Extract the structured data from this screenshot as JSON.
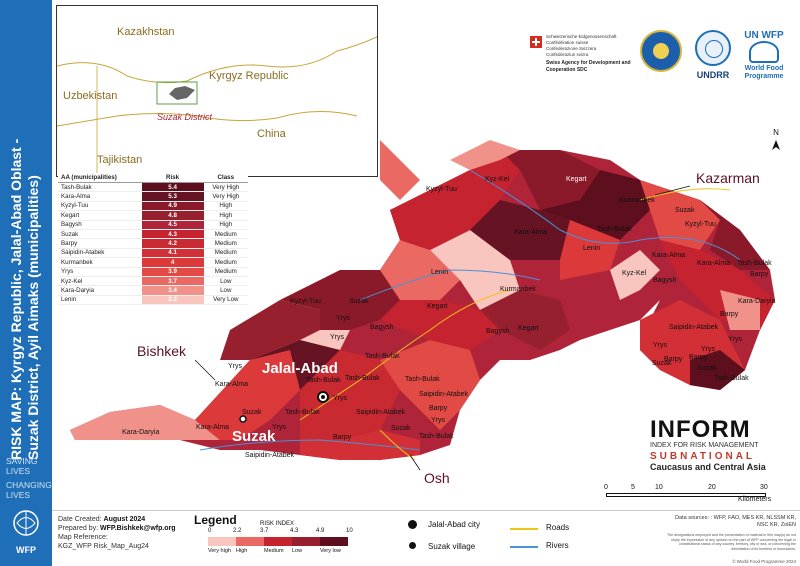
{
  "title": {
    "main": "RISK MAP: Kyrgyz Republic, Jalal-Abad Oblast -",
    "sub": "Suzak District, Ayil Aimaks (municipalities)"
  },
  "sidebar": {
    "slogan_1": "SAVING\nLIVES",
    "slogan_2": "CHANGING\nLIVES",
    "logo_text": "WFP"
  },
  "inset": {
    "countries": [
      "Kazakhstan",
      "Kyrgyz Republic",
      "Uzbekistan",
      "China",
      "Tajikistan"
    ],
    "district_label": "Suzak District"
  },
  "logos": {
    "swiss_lines": "Schweizerische Eidgenossenschaft\nConfédération suisse\nConfederazione Svizzera\nConfederaziun svizra",
    "agency": "Swiss Agency for Development and Cooperation SDC",
    "undrr": "UNDRR",
    "un_wfp_top": "UN WFP",
    "un_wfp_bottom": "World Food Programme"
  },
  "table": {
    "headers": [
      "AA (municipalities)",
      "Risk",
      "Class"
    ],
    "rows": [
      {
        "name": "Tash-Bulak",
        "risk": "5.4",
        "class": "Very High",
        "color": "#5e0f1e"
      },
      {
        "name": "Kara-Alma",
        "risk": "5.3",
        "class": "Very High",
        "color": "#661424"
      },
      {
        "name": "Kyzyl-Tuu",
        "risk": "4.9",
        "class": "High",
        "color": "#8a1a2a"
      },
      {
        "name": "Kegart",
        "risk": "4.8",
        "class": "High",
        "color": "#96202e"
      },
      {
        "name": "Bagysh",
        "risk": "4.5",
        "class": "High",
        "color": "#b0243a"
      },
      {
        "name": "Suzak",
        "risk": "4.3",
        "class": "Medium",
        "color": "#c4232f"
      },
      {
        "name": "Barpy",
        "risk": "4.2",
        "class": "Medium",
        "color": "#c92a32"
      },
      {
        "name": "Saipidin-Atabek",
        "risk": "4.1",
        "class": "Medium",
        "color": "#d22f36"
      },
      {
        "name": "Kurmanbek",
        "risk": "4",
        "class": "Medium",
        "color": "#dc3a3a"
      },
      {
        "name": "Yrys",
        "risk": "3.9",
        "class": "Medium",
        "color": "#e24a45"
      },
      {
        "name": "Kyz-Kel",
        "risk": "3.7",
        "class": "Low",
        "color": "#ea6a63"
      },
      {
        "name": "Kara-Daryia",
        "risk": "3.4",
        "class": "Low",
        "color": "#f0928a"
      },
      {
        "name": "Lenin",
        "risk": "2.2",
        "class": "Very Low",
        "color": "#f8c5bf"
      }
    ]
  },
  "map": {
    "places": [
      "Kyz-Kel",
      "Kyzyl-Tuu",
      "Kegart",
      "Kara-Alma",
      "Kurmanbek",
      "Suzak",
      "Kyzyl-Tuu",
      "Tash-Bulak",
      "Lenin",
      "Kara-Alma",
      "Tash-Bulak",
      "Kara-Alma",
      "Kyz-Kel",
      "Barpy",
      "Bagysh",
      "Kara-Daryia",
      "Lenin",
      "Kurmanbek",
      "Kyzyl-Tuu",
      "Suzak",
      "Kegart",
      "Yrys",
      "Bagysh",
      "Yrys",
      "Kegart",
      "Bagysh",
      "Saipidin-Atabek",
      "Barpy",
      "Yrys",
      "Tash-Bulak",
      "Yrys",
      "Yrys",
      "Kara-Alma",
      "Tash-Bulak",
      "Tash-Bulak",
      "Tash-Bulak",
      "Kara-Daryia",
      "Kara-Alma",
      "Suzak",
      "Yrys",
      "Tash-Bulak",
      "Saipidin-Atabek",
      "Barpy",
      "Saipidin-Atabek",
      "Yrys",
      "Suzak",
      "Tash-Bulak",
      "Barpy",
      "Saipidin-Atabek",
      "Barpy",
      "Barpy",
      "Yrys",
      "Suzak",
      "Suzak",
      "Tash-Bulak",
      "Yrys"
    ],
    "cities": {
      "kazarman": "Kazarman",
      "bishkek": "Bishkek",
      "jalal_abad": "Jalal-Abad",
      "suzak": "Suzak",
      "osh": "Osh"
    },
    "north": "N",
    "colors": {
      "water": "#ffffff",
      "sidebar": "#1f6fb8",
      "road": "#f0c419",
      "river": "#4a90d9"
    }
  },
  "inform": {
    "name": "INFORM",
    "tagline": "INDEX FOR RISK MANAGEMENT",
    "subnational": "SUBNATIONAL",
    "region": "Caucasus and Central Asia"
  },
  "scale": {
    "ticks": [
      "0",
      "5",
      "10",
      "20",
      "30"
    ],
    "unit": "Kilometers"
  },
  "footer": {
    "created_label": "Date Created:",
    "created_value": "August 2024",
    "prepared_label": "Prepared by:",
    "prepared_value": "WFP.Bishkek@wfp.org",
    "ref_label": "Map Reference:",
    "ref_value": "KGZ_WFP Risk_Map_Aug24",
    "legend_title": "Legend",
    "risk_index_label": "RISK INDEX",
    "legend_ticks": [
      "0",
      "2.2",
      "3.7",
      "4.3",
      "4.9",
      "10"
    ],
    "legend_classes": [
      "Very high",
      "High",
      "Medium",
      "Low",
      "Very low"
    ],
    "legend_colors": [
      "#f8c5bf",
      "#ea6a63",
      "#c4232f",
      "#96202e",
      "#5e0f1e"
    ],
    "symbol_city": "Jalal-Abad city",
    "symbol_village": "Suzak village",
    "symbol_roads": "Roads",
    "symbol_rivers": "Rivers",
    "sources": "Data sources: : WFP, FAO, MES KR, NLSSM KR, NSC KR, ZoiEN",
    "disclaimer": "The designations employed and the presentation of material in this map(s) do not imply the expression of any opinion on the part of WFP concerning the legal or constitutional status of any country, territory, city or sea, or concerning the delimitation of its frontiers or boundaries.",
    "copyright": "© World Food Programme 2024"
  }
}
